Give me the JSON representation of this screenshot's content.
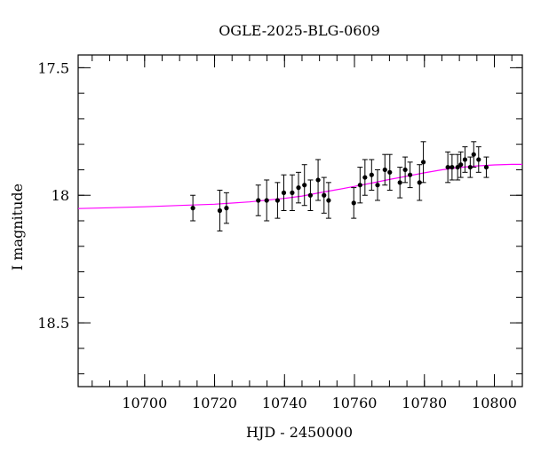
{
  "chart_data": {
    "type": "scatter",
    "title": "OGLE-2025-BLG-0609",
    "xlabel": "HJD - 2450000",
    "ylabel": "I magnitude",
    "xlim": [
      10681,
      10808
    ],
    "ylim": [
      18.75,
      17.45
    ],
    "y_inverted": true,
    "x_ticks": [
      10700,
      10720,
      10740,
      10760,
      10780,
      10800
    ],
    "x_tick_labels": [
      "10700",
      "10720",
      "10740",
      "10760",
      "10780",
      "10800"
    ],
    "y_ticks": [
      17.5,
      18,
      18.5
    ],
    "y_tick_labels": [
      "17.5",
      "18",
      "18.5"
    ],
    "x_minor_step": 5,
    "y_minor_step": 0.1,
    "grid": false,
    "series": [
      {
        "kind": "points_with_errorbars",
        "color": "#000000",
        "points": [
          {
            "x": 10713.8,
            "y": 18.05,
            "err": 0.05
          },
          {
            "x": 10721.5,
            "y": 18.06,
            "err": 0.08
          },
          {
            "x": 10723.4,
            "y": 18.05,
            "err": 0.06
          },
          {
            "x": 10732.5,
            "y": 18.02,
            "err": 0.06
          },
          {
            "x": 10734.9,
            "y": 18.02,
            "err": 0.08
          },
          {
            "x": 10738.0,
            "y": 18.02,
            "err": 0.07
          },
          {
            "x": 10739.8,
            "y": 17.99,
            "err": 0.07
          },
          {
            "x": 10742.2,
            "y": 17.99,
            "err": 0.07
          },
          {
            "x": 10744.0,
            "y": 17.97,
            "err": 0.06
          },
          {
            "x": 10745.7,
            "y": 17.96,
            "err": 0.08
          },
          {
            "x": 10747.4,
            "y": 18.0,
            "err": 0.06
          },
          {
            "x": 10749.6,
            "y": 17.94,
            "err": 0.08
          },
          {
            "x": 10751.3,
            "y": 18.0,
            "err": 0.07
          },
          {
            "x": 10752.6,
            "y": 18.02,
            "err": 0.07
          },
          {
            "x": 10759.8,
            "y": 18.03,
            "err": 0.06
          },
          {
            "x": 10761.6,
            "y": 17.96,
            "err": 0.07
          },
          {
            "x": 10763.0,
            "y": 17.93,
            "err": 0.07
          },
          {
            "x": 10764.9,
            "y": 17.92,
            "err": 0.06
          },
          {
            "x": 10766.6,
            "y": 17.96,
            "err": 0.06
          },
          {
            "x": 10768.7,
            "y": 17.9,
            "err": 0.06
          },
          {
            "x": 10770.1,
            "y": 17.91,
            "err": 0.07
          },
          {
            "x": 10773.0,
            "y": 17.95,
            "err": 0.06
          },
          {
            "x": 10774.5,
            "y": 17.9,
            "err": 0.05
          },
          {
            "x": 10775.9,
            "y": 17.92,
            "err": 0.05
          },
          {
            "x": 10778.6,
            "y": 17.95,
            "err": 0.07
          },
          {
            "x": 10779.7,
            "y": 17.87,
            "err": 0.08
          },
          {
            "x": 10786.7,
            "y": 17.89,
            "err": 0.06
          },
          {
            "x": 10787.9,
            "y": 17.89,
            "err": 0.05
          },
          {
            "x": 10789.5,
            "y": 17.89,
            "err": 0.05
          },
          {
            "x": 10790.4,
            "y": 17.88,
            "err": 0.05
          },
          {
            "x": 10791.6,
            "y": 17.86,
            "err": 0.05
          },
          {
            "x": 10793.1,
            "y": 17.89,
            "err": 0.04
          },
          {
            "x": 10794.1,
            "y": 17.84,
            "err": 0.05
          },
          {
            "x": 10795.5,
            "y": 17.86,
            "err": 0.05
          },
          {
            "x": 10797.7,
            "y": 17.89,
            "err": 0.04
          }
        ]
      },
      {
        "kind": "model_curve",
        "color": "#ff00ff",
        "points": [
          {
            "x": 10681,
            "y": 18.052
          },
          {
            "x": 10690,
            "y": 18.049
          },
          {
            "x": 10700,
            "y": 18.045
          },
          {
            "x": 10710,
            "y": 18.04
          },
          {
            "x": 10720,
            "y": 18.035
          },
          {
            "x": 10730,
            "y": 18.026
          },
          {
            "x": 10740,
            "y": 18.012
          },
          {
            "x": 10745,
            "y": 18.003
          },
          {
            "x": 10750,
            "y": 17.99
          },
          {
            "x": 10755,
            "y": 17.978
          },
          {
            "x": 10760,
            "y": 17.965
          },
          {
            "x": 10765,
            "y": 17.952
          },
          {
            "x": 10770,
            "y": 17.938
          },
          {
            "x": 10775,
            "y": 17.925
          },
          {
            "x": 10780,
            "y": 17.912
          },
          {
            "x": 10785,
            "y": 17.9
          },
          {
            "x": 10790,
            "y": 17.891
          },
          {
            "x": 10795,
            "y": 17.885
          },
          {
            "x": 10800,
            "y": 17.881
          },
          {
            "x": 10805,
            "y": 17.879
          },
          {
            "x": 10808,
            "y": 17.879
          }
        ]
      }
    ]
  }
}
